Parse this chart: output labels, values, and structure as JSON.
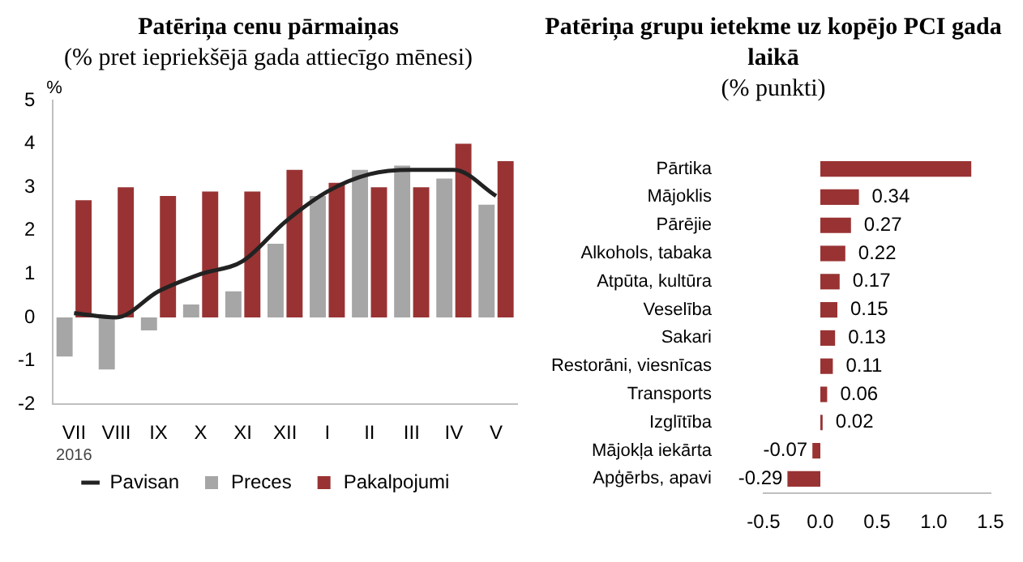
{
  "chart_data": [
    {
      "type": "bar",
      "title": "Patēriņa cenu pārmaiņas",
      "subtitle": "(% pret iepriekšējā gada attiecīgo mēnesi)",
      "ylabel": "%",
      "categories": [
        "VII",
        "VIII",
        "IX",
        "X",
        "XI",
        "XII",
        "I",
        "II",
        "III",
        "IV",
        "V"
      ],
      "series": [
        {
          "name": "Preces",
          "color": "#a6a6a6",
          "values": [
            -0.9,
            -1.2,
            -0.3,
            0.3,
            0.6,
            1.7,
            2.8,
            3.4,
            3.5,
            3.2,
            2.6
          ]
        },
        {
          "name": "Pakalpojumi",
          "color": "#993333",
          "values": [
            2.7,
            3.0,
            2.8,
            2.9,
            2.9,
            3.4,
            3.1,
            3.0,
            3.0,
            4.0,
            3.6
          ]
        },
        {
          "name": "Pavisan",
          "type": "line",
          "color": "#222222",
          "values": [
            0.1,
            0.0,
            0.6,
            1.0,
            1.3,
            2.2,
            2.9,
            3.3,
            3.4,
            3.4,
            2.8
          ]
        }
      ],
      "ylim": [
        -2,
        5
      ],
      "yticks": [
        -2,
        -1,
        0,
        1,
        2,
        3,
        4,
        5
      ],
      "grid": false,
      "legend": "bottom",
      "annotations": [
        "2016"
      ]
    },
    {
      "type": "bar",
      "orientation": "horizontal",
      "title": "Patēriņa grupu ietekme uz kopējo PCI gada laikā",
      "subtitle": "(% punkti)",
      "categories": [
        "Pārtika",
        "Mājoklis",
        "Pārējie",
        "Alkohols, tabaka",
        "Atpūta, kultūra",
        "Veselība",
        "Sakari",
        "Restorāni, viesnīcas",
        "Transports",
        "Izglītība",
        "Mājokļa iekārta",
        "Apģērbs, apavi"
      ],
      "values": [
        1.33,
        0.34,
        0.27,
        0.22,
        0.17,
        0.15,
        0.13,
        0.11,
        0.06,
        0.02,
        -0.07,
        -0.29
      ],
      "value_labels": [
        null,
        "0.34",
        "0.27",
        "0.22",
        "0.17",
        "0.15",
        "0.13",
        "0.11",
        "0.06",
        "0.02",
        "-0.07",
        "-0.29"
      ],
      "color": "#993333",
      "xlim": [
        -0.5,
        1.5
      ],
      "xticks": [
        -0.5,
        {
          "value": 0,
          "label": "0.0"
        },
        0.5,
        {
          "value": 1,
          "label": "1.0"
        },
        1.5
      ],
      "grid": false,
      "legend": false
    }
  ]
}
